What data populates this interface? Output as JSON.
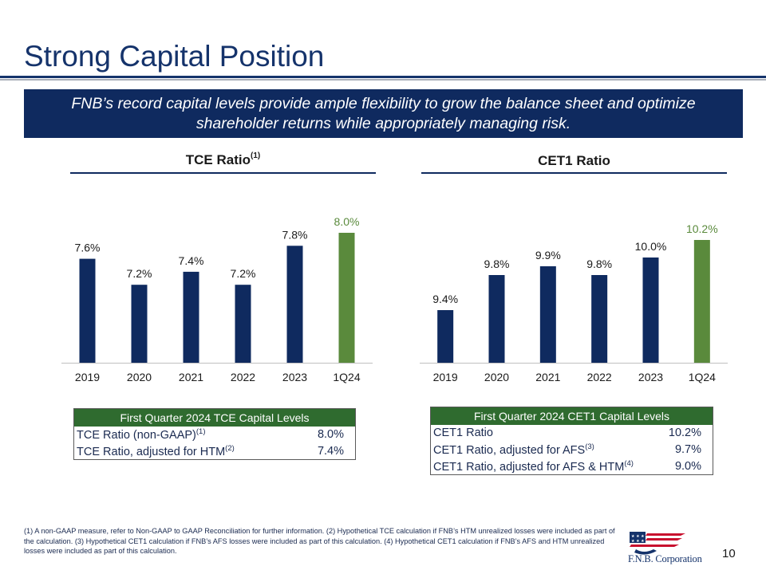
{
  "title": "Strong Capital Position",
  "banner": {
    "line1": "FNB’s record capital levels provide ample flexibility to grow the balance sheet and optimize",
    "line2": "shareholder returns while appropriately managing risk."
  },
  "colors": {
    "navy": "#0f2a5f",
    "green": "#5a8a3c",
    "table_header": "#2f6b2f",
    "title_blue": "#15336b"
  },
  "chart_data": [
    {
      "type": "bar",
      "title": "TCE Ratio",
      "title_footnote": "(1)",
      "categories": [
        "2019",
        "2020",
        "2021",
        "2022",
        "2023",
        "1Q24"
      ],
      "values": [
        7.6,
        7.2,
        7.4,
        7.2,
        7.8,
        8.0
      ],
      "labels": [
        "7.6%",
        "7.2%",
        "7.4%",
        "7.2%",
        "7.8%",
        "8.0%"
      ],
      "highlight_last": true,
      "ylim": [
        6.0,
        8.0
      ],
      "grid": false,
      "xlabel": "",
      "ylabel": ""
    },
    {
      "type": "bar",
      "title": "CET1 Ratio",
      "categories": [
        "2019",
        "2020",
        "2021",
        "2022",
        "2023",
        "1Q24"
      ],
      "values": [
        9.4,
        9.8,
        9.9,
        9.8,
        10.0,
        10.2
      ],
      "labels": [
        "9.4%",
        "9.8%",
        "9.9%",
        "9.8%",
        "10.0%",
        "10.2%"
      ],
      "highlight_last": true,
      "ylim": [
        8.8,
        10.2
      ],
      "grid": false,
      "xlabel": "",
      "ylabel": ""
    }
  ],
  "tce_table": {
    "header": "First Quarter 2024 TCE Capital Levels",
    "rows": [
      {
        "label": "TCE Ratio (non-GAAP)",
        "note": "(1)",
        "value": "8.0%"
      },
      {
        "label": "TCE Ratio, adjusted for HTM",
        "note": "(2)",
        "value": "7.4%"
      }
    ]
  },
  "cet1_table": {
    "header": "First Quarter 2024 CET1 Capital Levels",
    "rows": [
      {
        "label": "CET1 Ratio",
        "note": "",
        "value": "10.2%"
      },
      {
        "label": "CET1 Ratio, adjusted for AFS",
        "note": "(3)",
        "value": "9.7%"
      },
      {
        "label": "CET1 Ratio, adjusted for AFS & HTM",
        "note": "(4)",
        "value": "9.0%"
      }
    ]
  },
  "footnote": "(1) A non-GAAP measure, refer to Non-GAAP to GAAP Reconciliation for further information. (2) Hypothetical TCE calculation if FNB’s HTM unrealized losses were included as part of the calculation. (3) Hypothetical CET1 calculation if FNB’s AFS losses were included as part of this calculation. (4) Hypothetical CET1 calculation if FNB’s AFS and HTM unrealized losses were included as part of this calculation.",
  "logo_text": "F.N.B. Corporation",
  "page_number": "10"
}
